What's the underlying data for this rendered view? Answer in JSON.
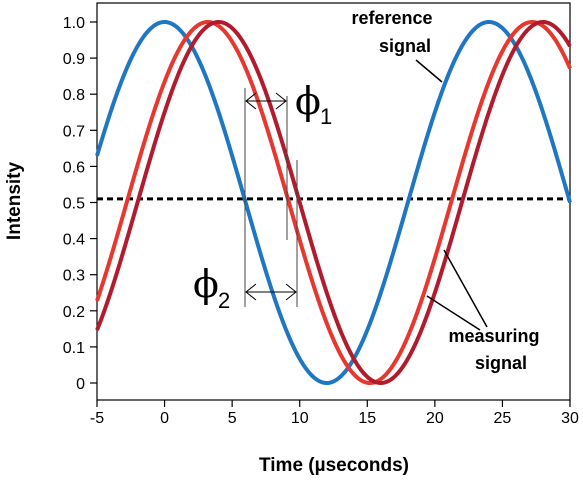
{
  "chart_data": {
    "type": "line",
    "title": "",
    "xlabel": "Time (µseconds)",
    "ylabel": "Intensity",
    "xlim": [
      -5,
      30
    ],
    "ylim": [
      0,
      1.0
    ],
    "x_ticks": [
      -5,
      0,
      5,
      10,
      15,
      20,
      25,
      30
    ],
    "x_tick_labels": [
      "-5",
      "0",
      "5",
      "10",
      "15",
      "20",
      "25",
      "30"
    ],
    "y_ticks": [
      0,
      0.1,
      0.2,
      0.3,
      0.4,
      0.5,
      0.6,
      0.7,
      0.8,
      0.9,
      1.0
    ],
    "y_tick_labels": [
      "0",
      "0.1",
      "0.2",
      "0.3",
      "0.4",
      "0.5",
      "0.6",
      "0.7",
      "0.8",
      "0.9",
      "1.0"
    ],
    "grid": false,
    "series": [
      {
        "color": "#1f77c4",
        "period": 24,
        "peak_time": 0,
        "offset": 0.5,
        "amplitude": 0.5
      },
      {
        "color": "#e8372f",
        "period": 24,
        "peak_time": 3.2,
        "offset": 0.5,
        "amplitude": 0.5
      },
      {
        "color": "#b01c2e",
        "period": 24,
        "peak_time": 4.0,
        "offset": 0.5,
        "amplitude": 0.5
      }
    ],
    "reference_line": {
      "y": 0.51,
      "style": "dashed",
      "color": "#000000"
    },
    "annotations": {
      "reference_label": [
        "reference",
        "signal"
      ],
      "measuring_label": [
        "measuring",
        "signal"
      ],
      "phi1": {
        "symbol": "ϕ",
        "subscript": "1",
        "from_x": 6,
        "to_x": 9
      },
      "phi2": {
        "symbol": "ϕ",
        "subscript": "2",
        "from_x": 6,
        "to_x": 10
      }
    }
  }
}
